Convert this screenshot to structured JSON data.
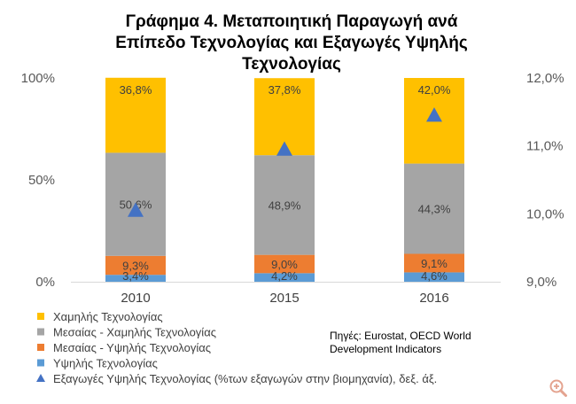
{
  "chart_data": {
    "type": "bar",
    "stacked": true,
    "title_lines": [
      "Γράφημα 4. Μεταποιητική Παραγωγή ανά",
      "Επίπεδο Τεχνολογίας και Εξαγωγές Υψηλής",
      "Τεχνολογίας"
    ],
    "categories": [
      "2010",
      "2015",
      "2016"
    ],
    "series": [
      {
        "name": "Υψηλής Τεχνολογίας",
        "color": "#5B9BD5",
        "values": [
          3.4,
          4.2,
          4.6
        ],
        "labels": [
          "3,4%",
          "4,2%",
          "4,6%"
        ]
      },
      {
        "name": "Μεσαίας - Υψηλής Τεχνολογίας",
        "color": "#ED7D31",
        "values": [
          9.3,
          9.0,
          9.1
        ],
        "labels": [
          "9,3%",
          "9,0%",
          "9,1%"
        ]
      },
      {
        "name": "Μεσαίας - Χαμηλής Τεχνολογίας",
        "color": "#A5A5A5",
        "values": [
          50.6,
          48.9,
          44.3
        ],
        "labels": [
          "50,6%",
          "48,9%",
          "44,3%"
        ]
      },
      {
        "name": "Χαμηλής Τεχνολογίας",
        "color": "#FFC000",
        "values": [
          36.8,
          37.8,
          42.0
        ],
        "labels": [
          "36,8%",
          "37,8%",
          "42,0%"
        ]
      }
    ],
    "secondary_series": {
      "name": "Εξαγωγές Υψηλής Τεχνολογίας (%των εξαγωγών στην βιομηχανία), δεξ. άξ.",
      "color": "#4472C4",
      "marker": "triangle",
      "values": [
        10.05,
        10.95,
        11.45
      ]
    },
    "y_left": {
      "range": [
        0,
        100
      ],
      "ticks": [
        0,
        50,
        100
      ],
      "tick_labels": [
        "0%",
        "50%",
        "100%"
      ]
    },
    "y_right": {
      "range": [
        9.0,
        12.0
      ],
      "ticks": [
        9.0,
        10.0,
        11.0,
        12.0
      ],
      "tick_labels": [
        "9,0%",
        "10,0%",
        "11,0%",
        "12,0%"
      ]
    },
    "legend_order": [
      "Χαμηλής Τεχνολογίας",
      "Μεσαίας - Χαμηλής Τεχνολογίας",
      "Μεσαίας - Υψηλής Τεχνολογίας",
      "Υψηλής Τεχνολογίας",
      "Εξαγωγές Υψηλής Τεχνολογίας (%των εξαγωγών στην βιομηχανία), δεξ. άξ."
    ],
    "source_lines": [
      "Πηγές: Eurostat, OECD World",
      "Development Indicators"
    ],
    "grid": false,
    "legend_position": "bottom-left"
  },
  "icons": {
    "zoom": "zoom-in-icon"
  }
}
